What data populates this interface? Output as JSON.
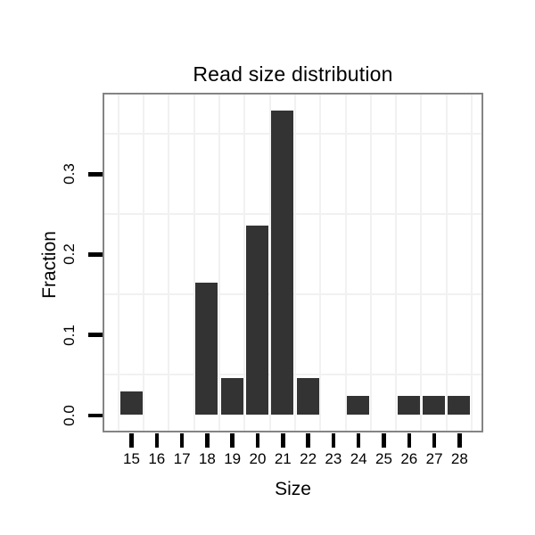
{
  "chart_data": {
    "type": "bar",
    "title": "Read size distribution",
    "xlabel": "Size",
    "ylabel": "Fraction",
    "categories": [
      "15",
      "16",
      "17",
      "18",
      "19",
      "20",
      "21",
      "22",
      "23",
      "24",
      "25",
      "26",
      "27",
      "28"
    ],
    "values": [
      0.029,
      0,
      0,
      0.165,
      0.046,
      0.236,
      0.378,
      0.046,
      0,
      0.024,
      0,
      0.024,
      0.024,
      0.024
    ],
    "yticks": [
      0.0,
      0.1,
      0.2,
      0.3
    ],
    "ytick_labels": [
      "0.0",
      "0.1",
      "0.2",
      "0.3"
    ],
    "ylim": [
      -0.019,
      0.399
    ],
    "grid": "light-gray lines offset half a step from ticks (x at category boundaries, y at 0.05/0.15/0.25/0.35)",
    "legend": "none",
    "colors": {
      "bar": "#333333",
      "panel_border": "#848484",
      "gridline": "#F1F1F1",
      "tick": "#000000",
      "text": "#000000",
      "background": "#FFFFFF"
    }
  }
}
